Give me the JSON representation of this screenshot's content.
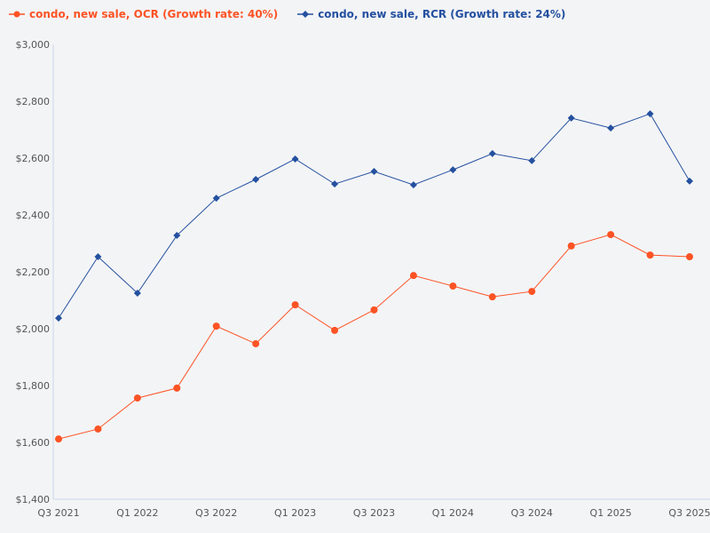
{
  "chart_data": {
    "type": "line",
    "title": "",
    "xlabel": "",
    "ylabel": "",
    "ylim": [
      1400,
      3000
    ],
    "yticks": [
      "$1,400",
      "$1,600",
      "$1,800",
      "$2,000",
      "$2,200",
      "$2,400",
      "$2,600",
      "$2,800",
      "$3,000"
    ],
    "ytick_values": [
      1400,
      1600,
      1800,
      2000,
      2200,
      2400,
      2600,
      2800,
      3000
    ],
    "categories": [
      "Q3 2021",
      "Q4 2021",
      "Q1 2022",
      "Q2 2022",
      "Q3 2022",
      "Q4 2022",
      "Q1 2023",
      "Q2 2023",
      "Q3 2023",
      "Q4 2023",
      "Q1 2024",
      "Q2 2024",
      "Q3 2024",
      "Q4 2024",
      "Q1 2025",
      "Q2 2025",
      "Q3 2025"
    ],
    "xtick_labels": [
      "Q3 2021",
      "Q1 2022",
      "Q3 2022",
      "Q1 2023",
      "Q3 2023",
      "Q1 2024",
      "Q3 2024",
      "Q1 2025",
      "Q3 2025"
    ],
    "grid": false,
    "legend_placement": "top-left",
    "series": [
      {
        "name": "condo, new sale, OCR (Growth rate: 40%)",
        "color": "#fc5325",
        "marker": "circle",
        "values": [
          1612,
          1647,
          1756,
          1791,
          2009,
          1947,
          2084,
          1994,
          2066,
          2187,
          2150,
          2112,
          2131,
          2291,
          2331,
          2259,
          2253
        ]
      },
      {
        "name": "condo, new sale, RCR (Growth rate: 24%)",
        "color": "#2450a0",
        "marker": "diamond",
        "values": [
          2037,
          2253,
          2125,
          2328,
          2459,
          2525,
          2597,
          2509,
          2553,
          2506,
          2559,
          2616,
          2591,
          2741,
          2706,
          2756,
          2519
        ]
      }
    ]
  }
}
